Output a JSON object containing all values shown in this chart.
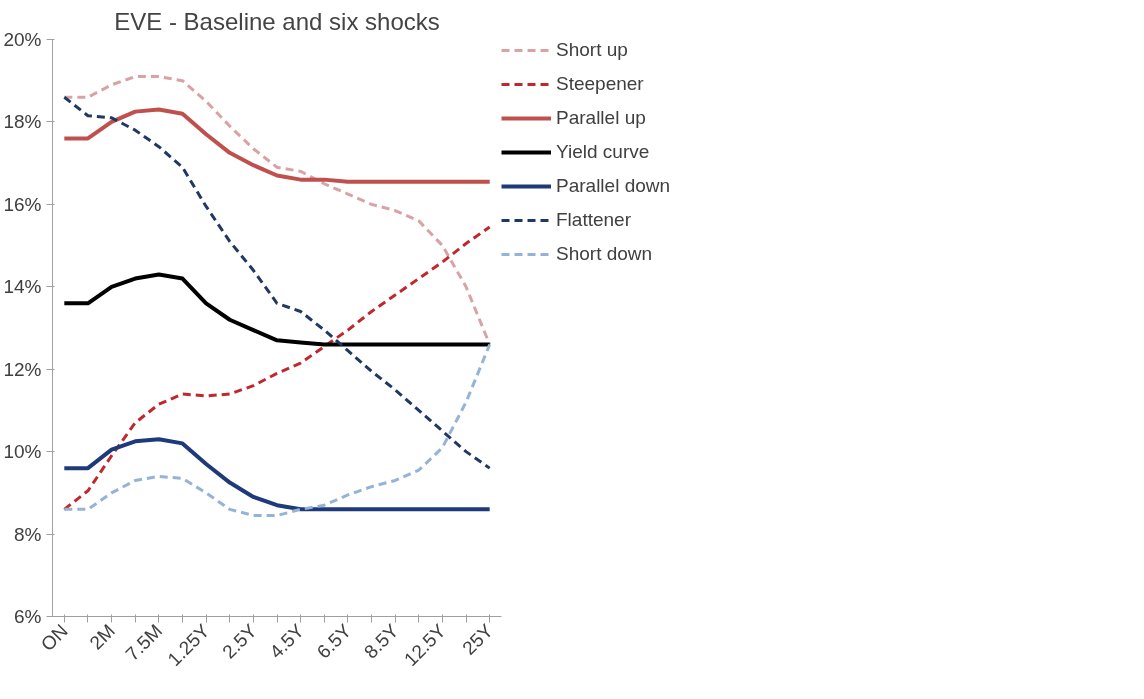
{
  "chart_data": {
    "type": "line",
    "title": "EVE - Baseline and six shocks",
    "categories": [
      "ON",
      null,
      "2M",
      null,
      "7.5M",
      null,
      "1.25Y",
      null,
      "2.5Y",
      null,
      "4.5Y",
      null,
      "6.5Y",
      null,
      "8.5Y",
      null,
      "12.5Y",
      null,
      "25Y"
    ],
    "ylim": [
      6,
      20
    ],
    "yticks": [
      {
        "value": 6,
        "label": "6%"
      },
      {
        "value": 8,
        "label": "8%"
      },
      {
        "value": 10,
        "label": "10%"
      },
      {
        "value": 12,
        "label": "12%"
      },
      {
        "value": 14,
        "label": "14%"
      },
      {
        "value": 16,
        "label": "16%"
      },
      {
        "value": 18,
        "label": "18%"
      },
      {
        "value": 20,
        "label": "20%"
      }
    ],
    "grid": false,
    "legend": "right",
    "marker": "none",
    "series": [
      {
        "name": "Short up",
        "color": "#d9a3a6",
        "line_style": "dashed",
        "values": [
          18.6,
          18.6,
          18.9,
          19.1,
          19.1,
          19.0,
          18.5,
          17.9,
          17.35,
          16.9,
          16.8,
          16.5,
          16.25,
          16.0,
          15.85,
          15.6,
          15.0,
          14.0,
          12.6
        ]
      },
      {
        "name": "Steepener",
        "color": "#c0282d",
        "line_style": "dashed",
        "values": [
          8.6,
          9.05,
          9.9,
          10.7,
          11.15,
          11.4,
          11.35,
          11.4,
          11.6,
          11.9,
          12.15,
          12.55,
          12.95,
          13.4,
          13.8,
          14.2,
          14.6,
          15.05,
          15.45
        ]
      },
      {
        "name": "Parallel up",
        "color": "#c0504d",
        "line_style": "solid",
        "values": [
          17.6,
          17.6,
          18.0,
          18.25,
          18.3,
          18.2,
          17.7,
          17.25,
          16.95,
          16.7,
          16.6,
          16.6,
          16.55,
          16.55,
          16.55,
          16.55,
          16.55,
          16.55,
          16.55
        ]
      },
      {
        "name": "Yield curve",
        "color": "#000000",
        "line_style": "solid",
        "values": [
          13.6,
          13.6,
          14.0,
          14.2,
          14.3,
          14.2,
          13.6,
          13.2,
          12.95,
          12.7,
          12.65,
          12.6,
          12.6,
          12.6,
          12.6,
          12.6,
          12.6,
          12.6,
          12.6
        ]
      },
      {
        "name": "Parallel down",
        "color": "#1f3a7a",
        "line_style": "solid",
        "values": [
          9.6,
          9.6,
          10.05,
          10.25,
          10.3,
          10.2,
          9.7,
          9.25,
          8.9,
          8.7,
          8.6,
          8.6,
          8.6,
          8.6,
          8.6,
          8.6,
          8.6,
          8.6,
          8.6
        ]
      },
      {
        "name": "Flattener",
        "color": "#1f3864",
        "line_style": "dashed",
        "values": [
          18.6,
          18.15,
          18.1,
          17.8,
          17.4,
          16.9,
          15.95,
          15.1,
          14.4,
          13.6,
          13.4,
          12.95,
          12.45,
          11.95,
          11.5,
          11.0,
          10.5,
          10.0,
          9.6
        ]
      },
      {
        "name": "Short down",
        "color": "#95b3d7",
        "line_style": "dashed",
        "values": [
          8.6,
          8.6,
          9.0,
          9.3,
          9.4,
          9.35,
          9.0,
          8.6,
          8.45,
          8.45,
          8.6,
          8.7,
          8.95,
          9.15,
          9.3,
          9.55,
          10.1,
          11.2,
          12.6
        ]
      }
    ]
  }
}
